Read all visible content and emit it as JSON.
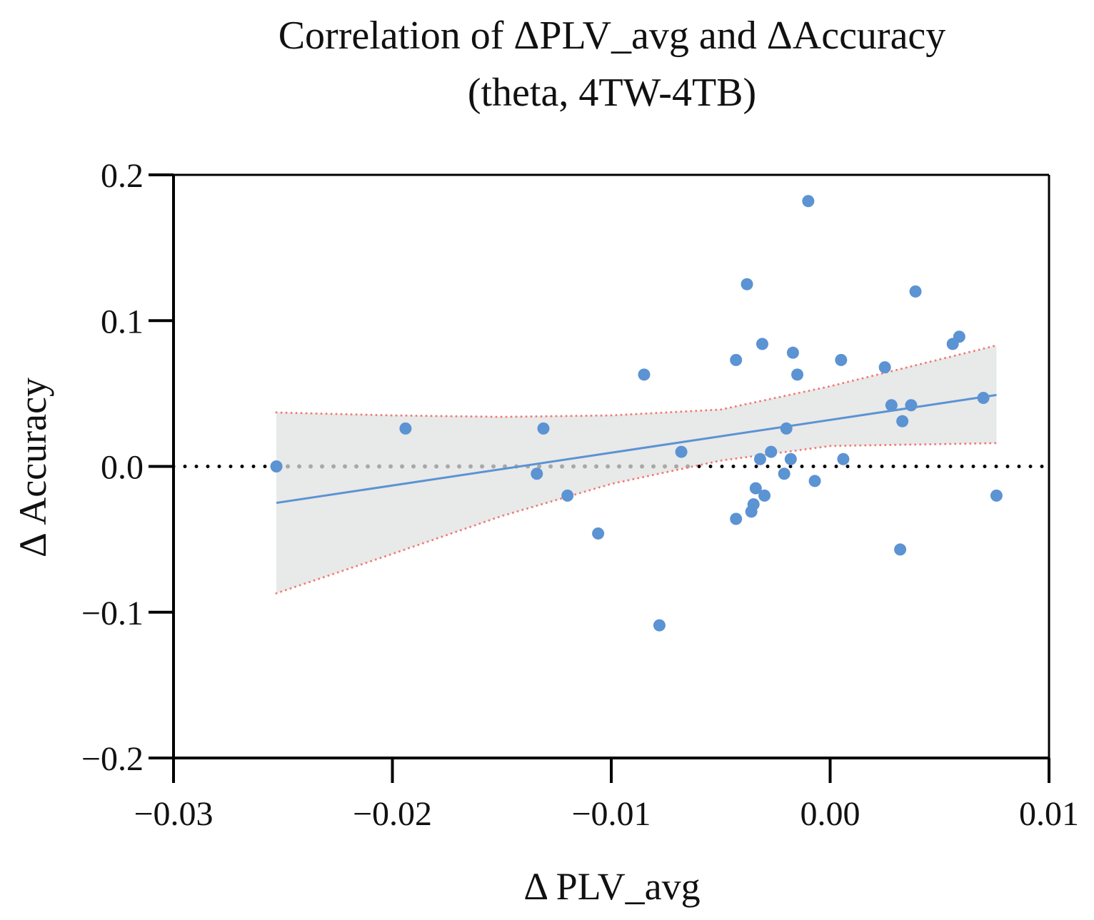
{
  "chart_data": {
    "type": "scatter",
    "title": "Correlation of ΔPLV_avg and ΔAccuracy",
    "subtitle": "(theta, 4TW-4TB)",
    "xlabel": "Δ PLV_avg",
    "ylabel": "Δ Accuracy",
    "xlim": [
      -0.03,
      0.01
    ],
    "ylim": [
      -0.2,
      0.2
    ],
    "xticks": [
      -0.03,
      -0.02,
      -0.01,
      0.0,
      0.01
    ],
    "xtick_labels": [
      "−0.03",
      "−0.02",
      "−0.01",
      "0.00",
      "0.01"
    ],
    "yticks": [
      -0.2,
      -0.1,
      0.0,
      0.1,
      0.2
    ],
    "ytick_labels": [
      "−0.2",
      "−0.1",
      "0.0",
      "0.1",
      "0.2"
    ],
    "grid": false,
    "colors": {
      "points": "#5b93d3",
      "fit_line": "#5b93d3",
      "ci_fill": "#e8e9e9",
      "ci_border": "#f07c78",
      "zero_line": "#000000",
      "zero_line_in_band": "#a8a8a8",
      "axis": "#000000"
    },
    "points": [
      {
        "x": -0.0253,
        "y": 0.0
      },
      {
        "x": -0.0194,
        "y": 0.026
      },
      {
        "x": -0.0134,
        "y": -0.005
      },
      {
        "x": -0.0131,
        "y": 0.026
      },
      {
        "x": -0.012,
        "y": -0.02
      },
      {
        "x": -0.0106,
        "y": -0.046
      },
      {
        "x": -0.0085,
        "y": 0.063
      },
      {
        "x": -0.0078,
        "y": -0.109
      },
      {
        "x": -0.0068,
        "y": 0.01
      },
      {
        "x": -0.0043,
        "y": 0.073
      },
      {
        "x": -0.0043,
        "y": -0.036
      },
      {
        "x": -0.0038,
        "y": 0.125
      },
      {
        "x": -0.0036,
        "y": -0.031
      },
      {
        "x": -0.0035,
        "y": -0.026
      },
      {
        "x": -0.0034,
        "y": -0.015
      },
      {
        "x": -0.0032,
        "y": 0.005
      },
      {
        "x": -0.0031,
        "y": 0.084
      },
      {
        "x": -0.003,
        "y": -0.02
      },
      {
        "x": -0.0027,
        "y": 0.01
      },
      {
        "x": -0.0021,
        "y": -0.005
      },
      {
        "x": -0.002,
        "y": 0.026
      },
      {
        "x": -0.0018,
        "y": 0.005
      },
      {
        "x": -0.0017,
        "y": 0.078
      },
      {
        "x": -0.0015,
        "y": 0.063
      },
      {
        "x": -0.001,
        "y": 0.182
      },
      {
        "x": -0.0007,
        "y": -0.01
      },
      {
        "x": 0.0005,
        "y": 0.073
      },
      {
        "x": 0.0006,
        "y": 0.005
      },
      {
        "x": 0.0025,
        "y": 0.068
      },
      {
        "x": 0.0028,
        "y": 0.042
      },
      {
        "x": 0.0032,
        "y": -0.057
      },
      {
        "x": 0.0033,
        "y": 0.031
      },
      {
        "x": 0.0037,
        "y": 0.042
      },
      {
        "x": 0.0039,
        "y": 0.12
      },
      {
        "x": 0.0056,
        "y": 0.084
      },
      {
        "x": 0.0059,
        "y": 0.089
      },
      {
        "x": 0.007,
        "y": 0.047
      },
      {
        "x": 0.0076,
        "y": -0.02
      }
    ],
    "fit_line": {
      "x": [
        -0.0253,
        0.0076
      ],
      "y": [
        -0.025,
        0.049
      ]
    },
    "ci_band": {
      "x": [
        -0.0253,
        -0.02,
        -0.015,
        -0.01,
        -0.005,
        0.0,
        0.0076
      ],
      "upper": [
        0.037,
        0.035,
        0.034,
        0.035,
        0.039,
        0.055,
        0.083
      ],
      "lower": [
        -0.087,
        -0.06,
        -0.034,
        -0.012,
        0.004,
        0.014,
        0.016
      ]
    },
    "zero_line": {
      "y": 0.0
    }
  }
}
